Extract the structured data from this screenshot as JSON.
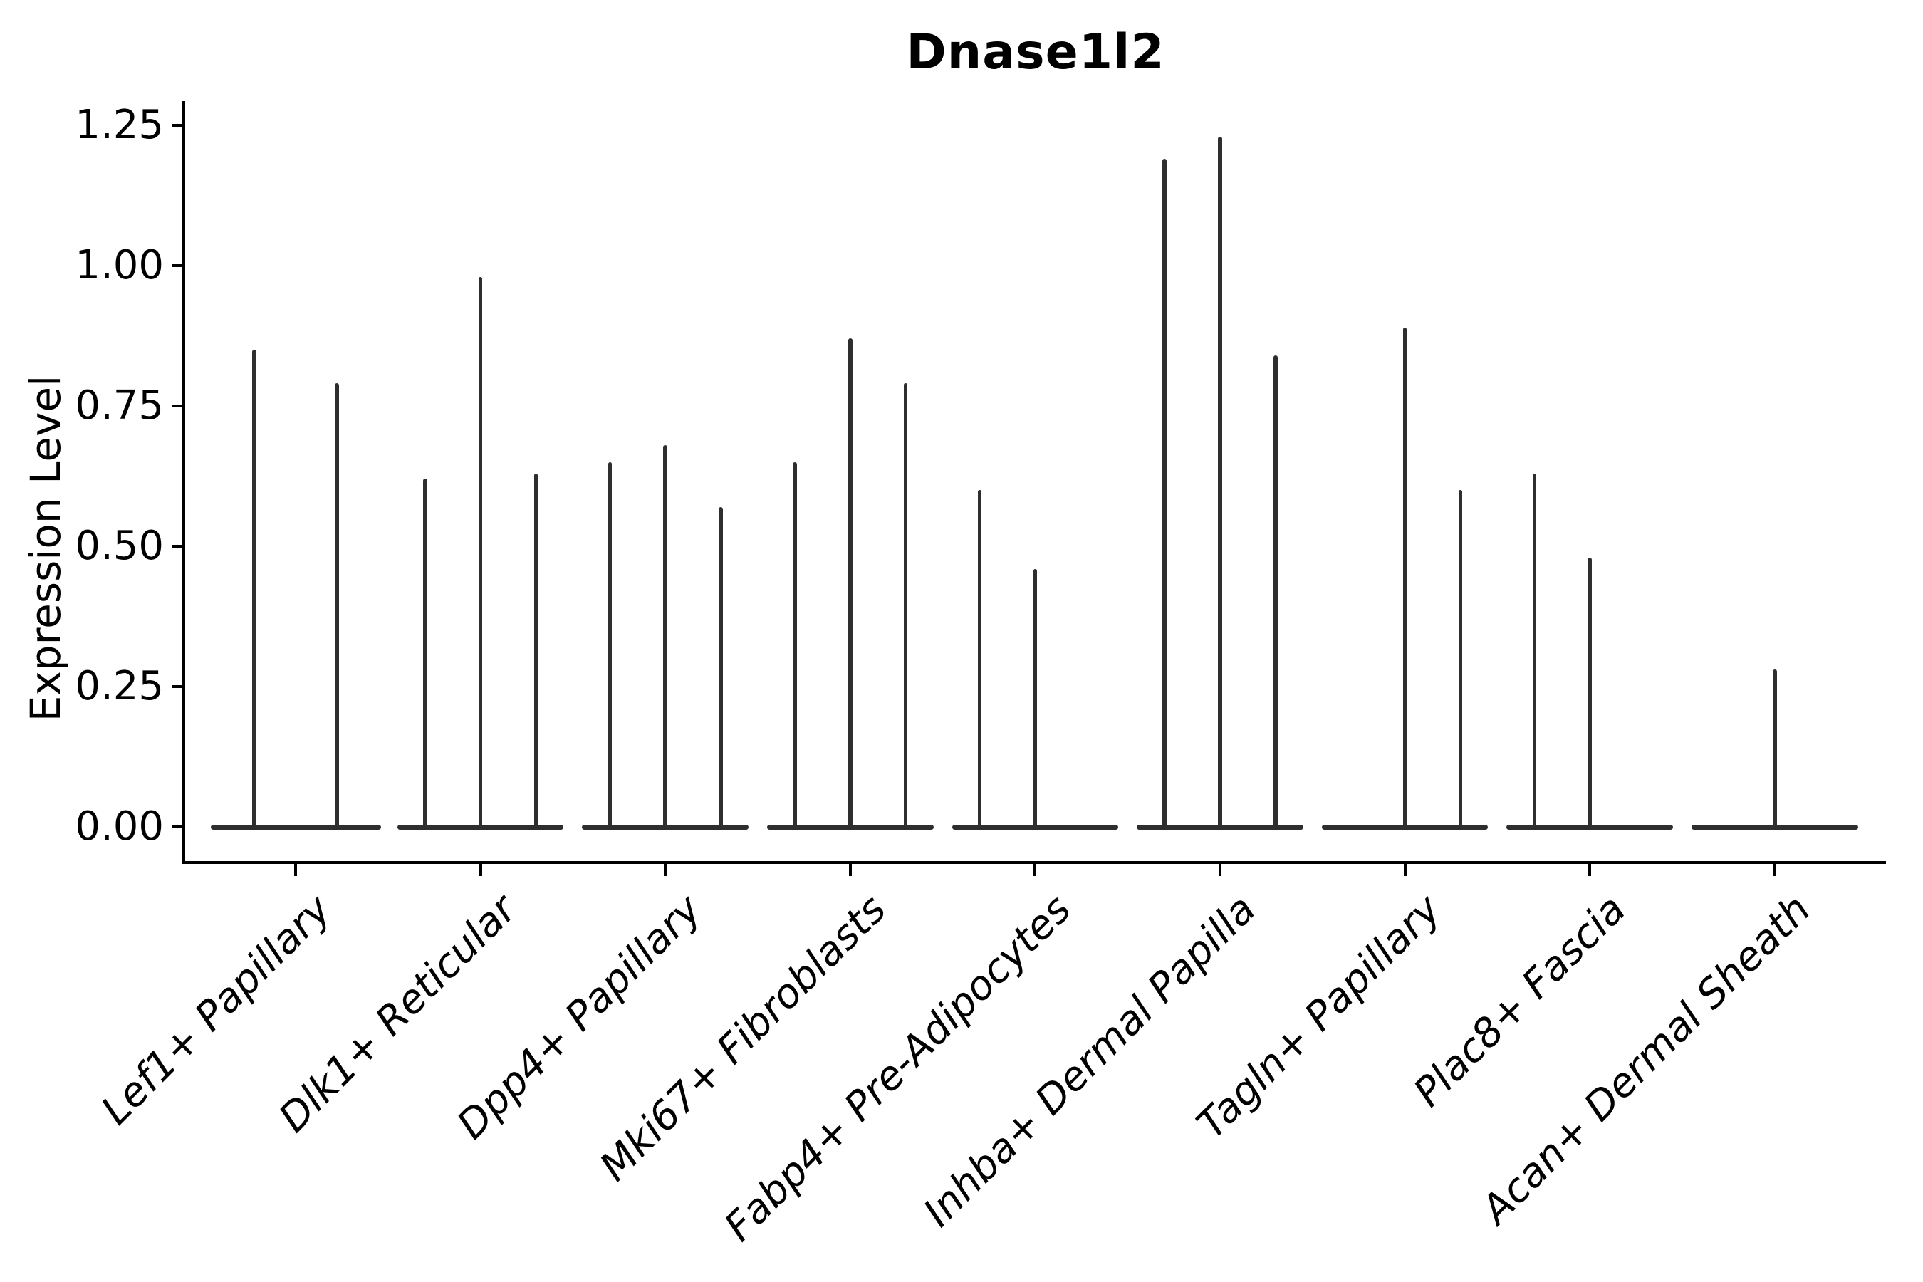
{
  "title": "Dnase1l2",
  "y_axis": {
    "label": "Expression Level",
    "tick_labels": [
      "0.00",
      "0.25",
      "0.50",
      "0.75",
      "1.00",
      "1.25"
    ]
  },
  "x_axis": {
    "categories": [
      "Lef1+ Papillary",
      "Dlk1+ Reticular",
      "Dpp4+ Papillary",
      "Mki67+ Fibroblasts",
      "Fabp4+ Pre-Adipocytes",
      "Inhba+ Dermal Papilla",
      "Tagln+ Papillary",
      "Plac8+ Fascia",
      "Acan+ Dermal Sheath"
    ]
  },
  "chart_data": {
    "type": "violin",
    "title": "Dnase1l2",
    "xlabel": "",
    "ylabel": "Expression Level",
    "ylim": [
      0,
      1.28
    ],
    "yticks": [
      0,
      0.25,
      0.5,
      0.75,
      1.0,
      1.25
    ],
    "ytick_labels": [
      "0.00",
      "0.25",
      "0.50",
      "0.75",
      "1.00",
      "1.25"
    ],
    "grid": false,
    "legend_position": "none",
    "categories": [
      "Lef1+ Papillary",
      "Dlk1+ Reticular",
      "Dpp4+ Papillary",
      "Mki67+ Fibroblasts",
      "Fabp4+ Pre-Adipocytes",
      "Inhba+ Dermal Papilla",
      "Tagln+ Papillary",
      "Plac8+ Fascia",
      "Acan+ Dermal Sheath"
    ],
    "description": "Needle-thin violins per category; most cells at 0 expression (wide flat base), value listed is the max expression reached by each violin's thin tail; 0 means a flat violin with no spike",
    "violin_max_values": [
      [
        0.85,
        0.79
      ],
      [
        0.62,
        0.98,
        0.63
      ],
      [
        0.65,
        0.68,
        0.57
      ],
      [
        0.65,
        0.87,
        0.79
      ],
      [
        0.6,
        0.46,
        0.0
      ],
      [
        1.19,
        1.23,
        0.84
      ],
      [
        0.0,
        0.89,
        0.6
      ],
      [
        0.63,
        0.48,
        0.0
      ],
      [
        0.0,
        0.28,
        0.0
      ]
    ],
    "violin_color": "#2e2e2e",
    "axis_color": "#000000",
    "background_color": "#ffffff"
  }
}
